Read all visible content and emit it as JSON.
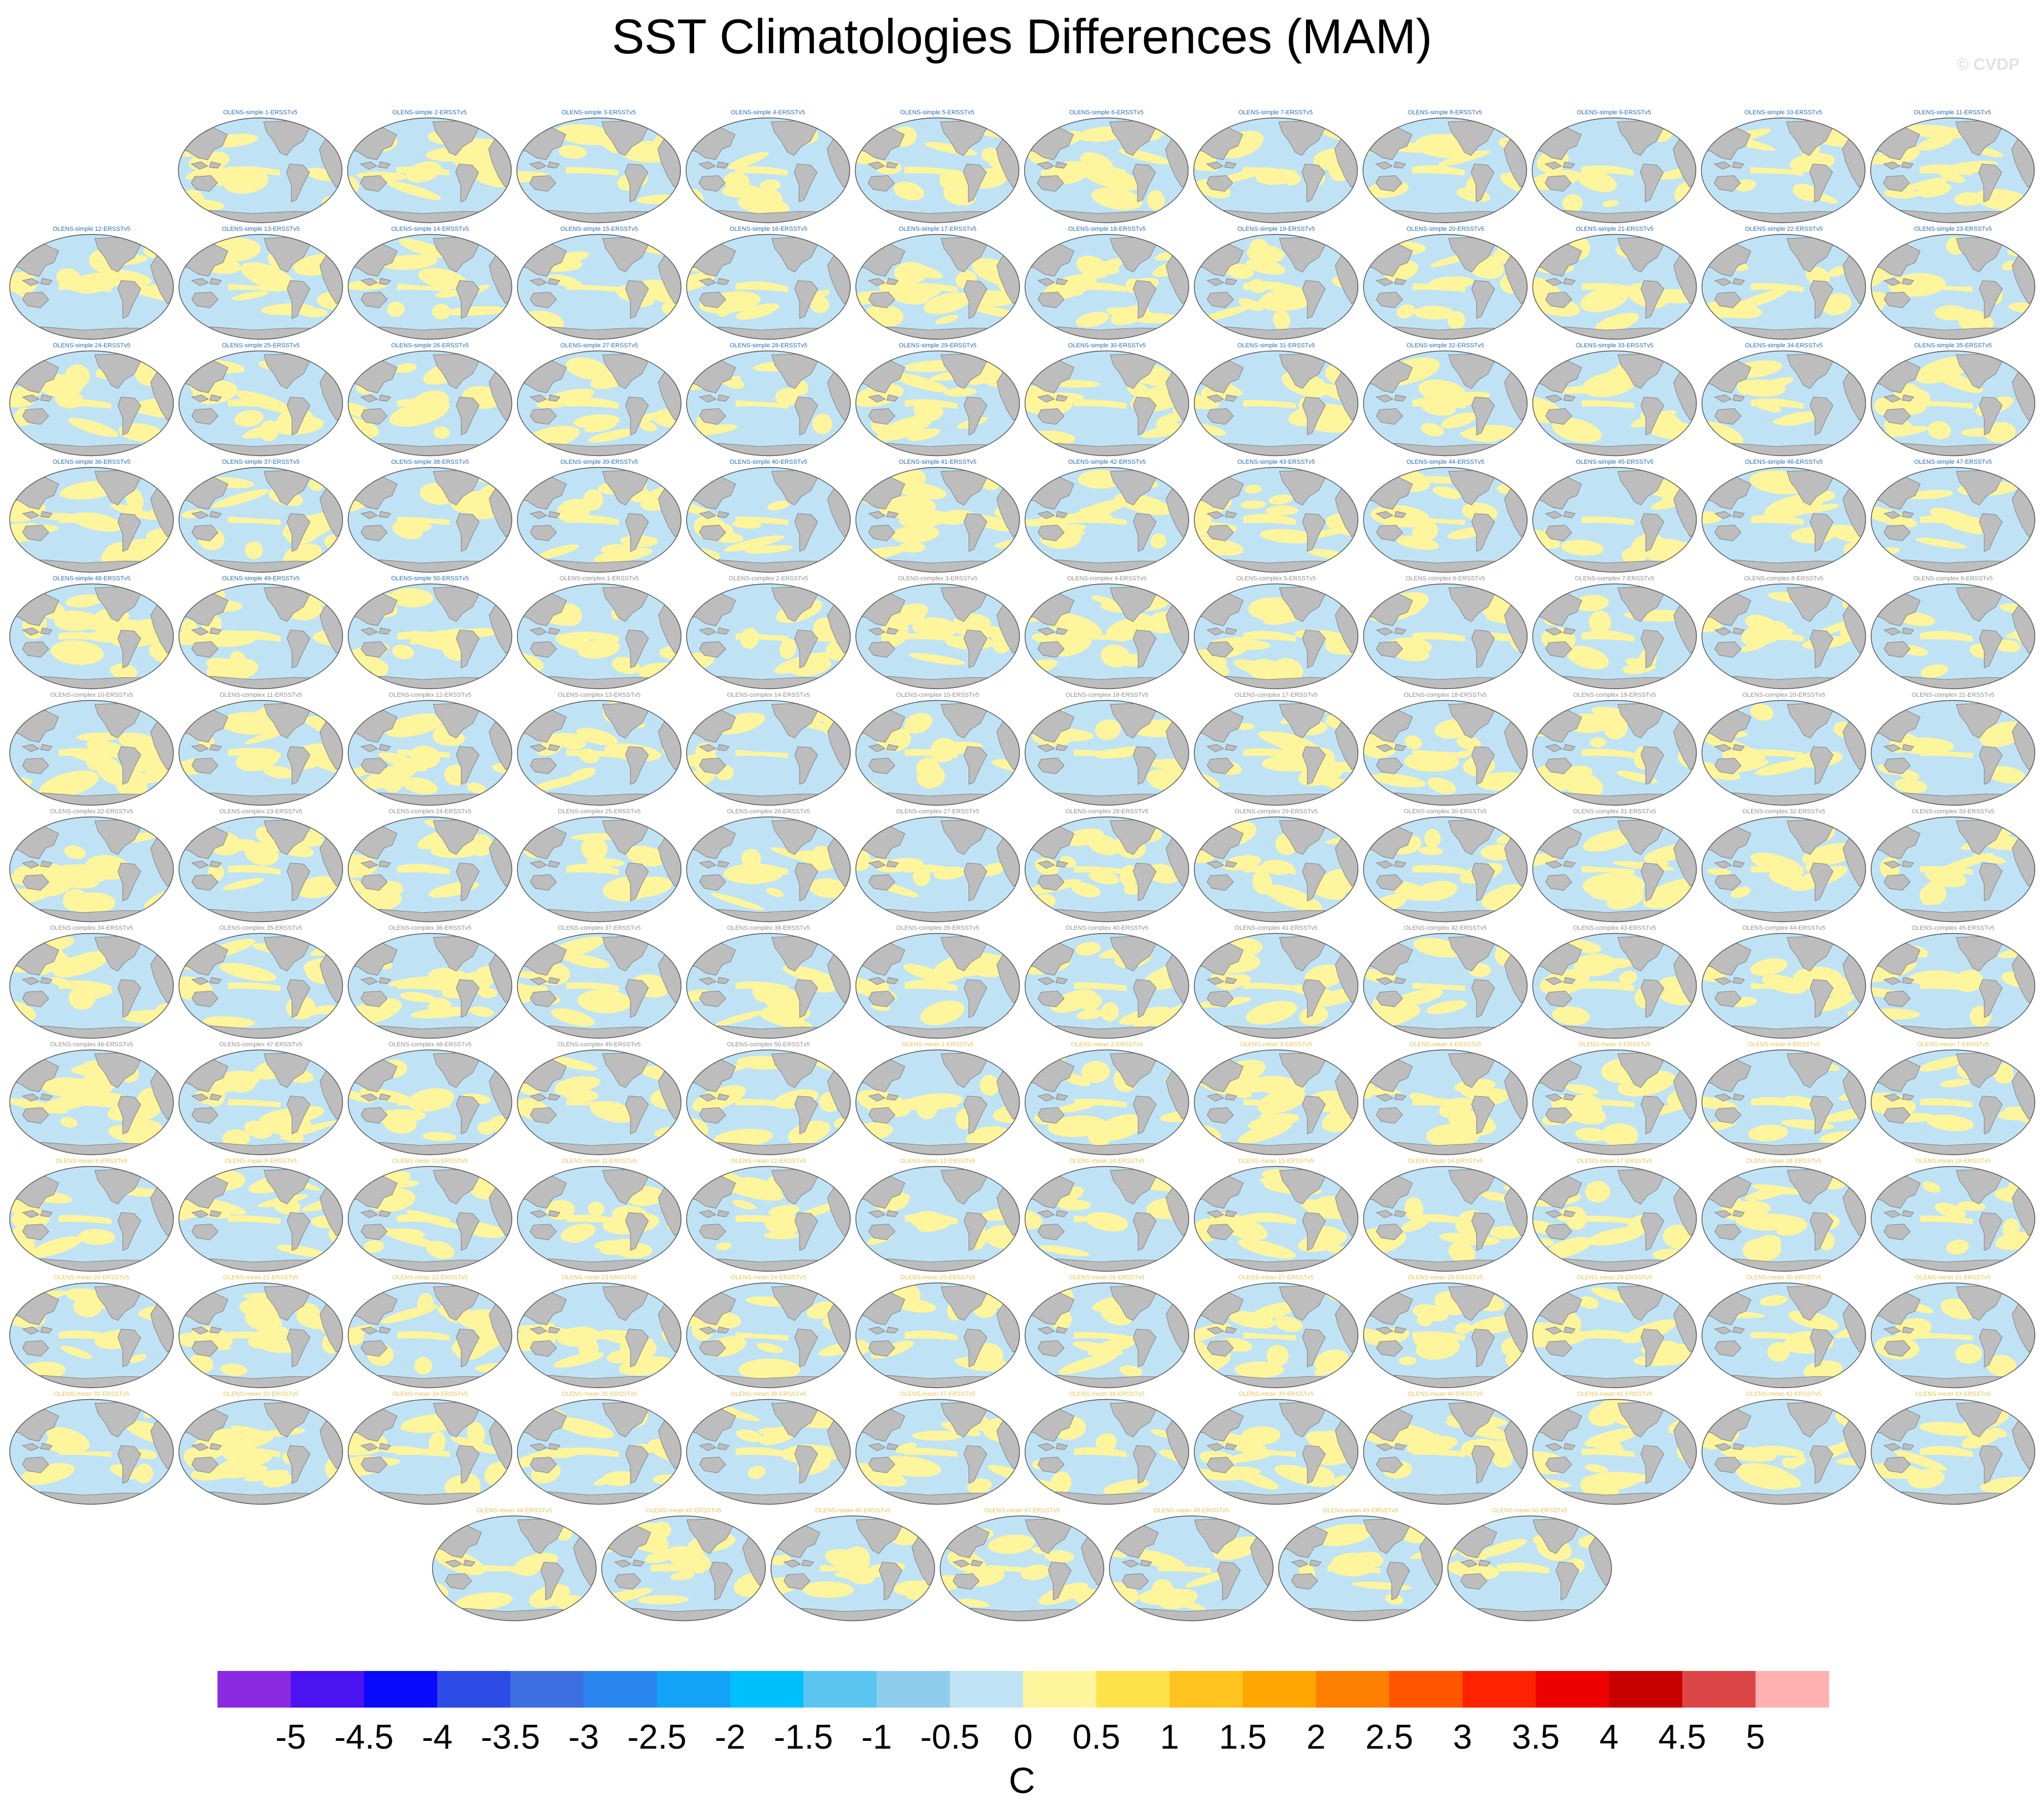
{
  "figure": {
    "title": "SST Climatologies Differences (MAM)",
    "watermark": "© CVDP"
  },
  "colors": {
    "ocean_neutral": "#bfe3f5",
    "positive_patch": "#fff59d",
    "land": "#bdbdbd",
    "title_simple": "#2a6db5",
    "title_complex": "#909090",
    "title_mean": "#e3c45a"
  },
  "chart_data": {
    "type": "heatmap",
    "title": "SST Climatologies Differences (MAM)",
    "colorbar": {
      "label": "C",
      "tick_labels": [
        "-5",
        "-4.5",
        "-4",
        "-3.5",
        "-3",
        "-2.5",
        "-2",
        "-1.5",
        "-1",
        "-0.5",
        "0",
        "0.5",
        "1",
        "1.5",
        "2",
        "2.5",
        "3",
        "3.5",
        "4",
        "4.5",
        "5"
      ],
      "levels": [
        -5,
        -4.5,
        -4,
        -3.5,
        -3,
        -2.5,
        -2,
        -1.5,
        -1,
        -0.5,
        0,
        0.5,
        1,
        1.5,
        2,
        2.5,
        3,
        3.5,
        4,
        4.5,
        5
      ],
      "colors": [
        "#8a2be2",
        "#4b12f2",
        "#0a0aff",
        "#2d4ce6",
        "#3e6fe0",
        "#2a86ef",
        "#12a3f6",
        "#00c0fb",
        "#5ac5f1",
        "#8fcdec",
        "#bfe3f5",
        "#fff59d",
        "#ffe24a",
        "#ffc21f",
        "#ffa500",
        "#ff7f00",
        "#ff5500",
        "#ff2200",
        "#ee0000",
        "#c80000",
        "#dc4545",
        "#ffb0b0"
      ]
    },
    "panels": [
      {
        "title": "OLENS-simple 1-ERSSTv5",
        "group": "simple"
      },
      {
        "title": "OLENS-simple 2-ERSSTv5",
        "group": "simple"
      },
      {
        "title": "OLENS-simple 3-ERSSTv5",
        "group": "simple"
      },
      {
        "title": "OLENS-simple 4-ERSSTv5",
        "group": "simple"
      },
      {
        "title": "OLENS-simple 5-ERSSTv5",
        "group": "simple"
      },
      {
        "title": "OLENS-simple 6-ERSSTv5",
        "group": "simple"
      },
      {
        "title": "OLENS-simple 7-ERSSTv5",
        "group": "simple"
      },
      {
        "title": "OLENS-simple 8-ERSSTv5",
        "group": "simple"
      },
      {
        "title": "OLENS-simple 9-ERSSTv5",
        "group": "simple"
      },
      {
        "title": "OLENS-simple 10-ERSSTv5",
        "group": "simple"
      },
      {
        "title": "OLENS-simple 11-ERSSTv5",
        "group": "simple"
      },
      {
        "title": "OLENS-simple 12-ERSSTv5",
        "group": "simple"
      },
      {
        "title": "OLENS-simple 13-ERSSTv5",
        "group": "simple"
      },
      {
        "title": "OLENS-simple 14-ERSSTv5",
        "group": "simple"
      },
      {
        "title": "OLENS-simple 15-ERSSTv5",
        "group": "simple"
      },
      {
        "title": "OLENS-simple 16-ERSSTv5",
        "group": "simple"
      },
      {
        "title": "OLENS-simple 17-ERSSTv5",
        "group": "simple"
      },
      {
        "title": "OLENS-simple 18-ERSSTv5",
        "group": "simple"
      },
      {
        "title": "OLENS-simple 19-ERSSTv5",
        "group": "simple"
      },
      {
        "title": "OLENS-simple 20-ERSSTv5",
        "group": "simple"
      },
      {
        "title": "OLENS-simple 21-ERSSTv5",
        "group": "simple"
      },
      {
        "title": "OLENS-simple 22-ERSSTv5",
        "group": "simple"
      },
      {
        "title": "OLENS-simple 23-ERSSTv5",
        "group": "simple"
      },
      {
        "title": "OLENS-simple 24-ERSSTv5",
        "group": "simple"
      },
      {
        "title": "OLENS-simple 25-ERSSTv5",
        "group": "simple"
      },
      {
        "title": "OLENS-simple 26-ERSSTv5",
        "group": "simple"
      },
      {
        "title": "OLENS-simple 27-ERSSTv5",
        "group": "simple"
      },
      {
        "title": "OLENS-simple 28-ERSSTv5",
        "group": "simple"
      },
      {
        "title": "OLENS-simple 29-ERSSTv5",
        "group": "simple"
      },
      {
        "title": "OLENS-simple 30-ERSSTv5",
        "group": "simple"
      },
      {
        "title": "OLENS-simple 31-ERSSTv5",
        "group": "simple"
      },
      {
        "title": "OLENS-simple 32-ERSSTv5",
        "group": "simple"
      },
      {
        "title": "OLENS-simple 33-ERSSTv5",
        "group": "simple"
      },
      {
        "title": "OLENS-simple 34-ERSSTv5",
        "group": "simple"
      },
      {
        "title": "OLENS-simple 35-ERSSTv5",
        "group": "simple"
      },
      {
        "title": "OLENS-simple 36-ERSSTv5",
        "group": "simple"
      },
      {
        "title": "OLENS-simple 37-ERSSTv5",
        "group": "simple"
      },
      {
        "title": "OLENS-simple 38-ERSSTv5",
        "group": "simple"
      },
      {
        "title": "OLENS-simple 39-ERSSTv5",
        "group": "simple"
      },
      {
        "title": "OLENS-simple 40-ERSSTv5",
        "group": "simple"
      },
      {
        "title": "OLENS-simple 41-ERSSTv5",
        "group": "simple"
      },
      {
        "title": "OLENS-simple 42-ERSSTv5",
        "group": "simple"
      },
      {
        "title": "OLENS-simple 43-ERSSTv5",
        "group": "simple"
      },
      {
        "title": "OLENS-simple 44-ERSSTv5",
        "group": "simple"
      },
      {
        "title": "OLENS-simple 45-ERSSTv5",
        "group": "simple"
      },
      {
        "title": "OLENS-simple 46-ERSSTv5",
        "group": "simple"
      },
      {
        "title": "OLENS-simple 47-ERSSTv5",
        "group": "simple"
      },
      {
        "title": "OLENS-simple 48-ERSSTv5",
        "group": "simple"
      },
      {
        "title": "OLENS-simple 49-ERSSTv5",
        "group": "simple"
      },
      {
        "title": "OLENS-simple 50-ERSSTv5",
        "group": "simple"
      },
      {
        "title": "OLENS-complex 1-ERSSTv5",
        "group": "complex"
      },
      {
        "title": "OLENS-complex 2-ERSSTv5",
        "group": "complex"
      },
      {
        "title": "OLENS-complex 3-ERSSTv5",
        "group": "complex"
      },
      {
        "title": "OLENS-complex 4-ERSSTv5",
        "group": "complex"
      },
      {
        "title": "OLENS-complex 5-ERSSTv5",
        "group": "complex"
      },
      {
        "title": "OLENS-complex 6-ERSSTv5",
        "group": "complex"
      },
      {
        "title": "OLENS-complex 7-ERSSTv5",
        "group": "complex"
      },
      {
        "title": "OLENS-complex 8-ERSSTv5",
        "group": "complex"
      },
      {
        "title": "OLENS-complex 9-ERSSTv5",
        "group": "complex"
      },
      {
        "title": "OLENS-complex 10-ERSSTv5",
        "group": "complex"
      },
      {
        "title": "OLENS-complex 11-ERSSTv5",
        "group": "complex"
      },
      {
        "title": "OLENS-complex 12-ERSSTv5",
        "group": "complex"
      },
      {
        "title": "OLENS-complex 13-ERSSTv5",
        "group": "complex"
      },
      {
        "title": "OLENS-complex 14-ERSSTv5",
        "group": "complex"
      },
      {
        "title": "OLENS-complex 15-ERSSTv5",
        "group": "complex"
      },
      {
        "title": "OLENS-complex 16-ERSSTv5",
        "group": "complex"
      },
      {
        "title": "OLENS-complex 17-ERSSTv5",
        "group": "complex"
      },
      {
        "title": "OLENS-complex 18-ERSSTv5",
        "group": "complex"
      },
      {
        "title": "OLENS-complex 19-ERSSTv5",
        "group": "complex"
      },
      {
        "title": "OLENS-complex 20-ERSSTv5",
        "group": "complex"
      },
      {
        "title": "OLENS-complex 21-ERSSTv5",
        "group": "complex"
      },
      {
        "title": "OLENS-complex 22-ERSSTv5",
        "group": "complex"
      },
      {
        "title": "OLENS-complex 23-ERSSTv5",
        "group": "complex"
      },
      {
        "title": "OLENS-complex 24-ERSSTv5",
        "group": "complex"
      },
      {
        "title": "OLENS-complex 25-ERSSTv5",
        "group": "complex"
      },
      {
        "title": "OLENS-complex 26-ERSSTv5",
        "group": "complex"
      },
      {
        "title": "OLENS-complex 27-ERSSTv5",
        "group": "complex"
      },
      {
        "title": "OLENS-complex 28-ERSSTv5",
        "group": "complex"
      },
      {
        "title": "OLENS-complex 29-ERSSTv5",
        "group": "complex"
      },
      {
        "title": "OLENS-complex 30-ERSSTv5",
        "group": "complex"
      },
      {
        "title": "OLENS-complex 31-ERSSTv5",
        "group": "complex"
      },
      {
        "title": "OLENS-complex 32-ERSSTv5",
        "group": "complex"
      },
      {
        "title": "OLENS-complex 33-ERSSTv5",
        "group": "complex"
      },
      {
        "title": "OLENS-complex 34-ERSSTv5",
        "group": "complex"
      },
      {
        "title": "OLENS-complex 35-ERSSTv5",
        "group": "complex"
      },
      {
        "title": "OLENS-complex 36-ERSSTv5",
        "group": "complex"
      },
      {
        "title": "OLENS-complex 37-ERSSTv5",
        "group": "complex"
      },
      {
        "title": "OLENS-complex 38-ERSSTv5",
        "group": "complex"
      },
      {
        "title": "OLENS-complex 39-ERSSTv5",
        "group": "complex"
      },
      {
        "title": "OLENS-complex 40-ERSSTv5",
        "group": "complex"
      },
      {
        "title": "OLENS-complex 41-ERSSTv5",
        "group": "complex"
      },
      {
        "title": "OLENS-complex 42-ERSSTv5",
        "group": "complex"
      },
      {
        "title": "OLENS-complex 43-ERSSTv5",
        "group": "complex"
      },
      {
        "title": "OLENS-complex 44-ERSSTv5",
        "group": "complex"
      },
      {
        "title": "OLENS-complex 45-ERSSTv5",
        "group": "complex"
      },
      {
        "title": "OLENS-complex 46-ERSSTv5",
        "group": "complex"
      },
      {
        "title": "OLENS-complex 47-ERSSTv5",
        "group": "complex"
      },
      {
        "title": "OLENS-complex 48-ERSSTv5",
        "group": "complex"
      },
      {
        "title": "OLENS-complex 49-ERSSTv5",
        "group": "complex"
      },
      {
        "title": "OLENS-complex 50-ERSSTv5",
        "group": "complex"
      },
      {
        "title": "OLENS-mean 1-ERSSTv5",
        "group": "mean"
      },
      {
        "title": "OLENS-mean 2-ERSSTv5",
        "group": "mean"
      },
      {
        "title": "OLENS-mean 3-ERSSTv5",
        "group": "mean"
      },
      {
        "title": "OLENS-mean 4-ERSSTv5",
        "group": "mean"
      },
      {
        "title": "OLENS-mean 5-ERSSTv5",
        "group": "mean"
      },
      {
        "title": "OLENS-mean 6-ERSSTv5",
        "group": "mean"
      },
      {
        "title": "OLENS-mean 7-ERSSTv5",
        "group": "mean"
      },
      {
        "title": "OLENS-mean 8-ERSSTv5",
        "group": "mean"
      },
      {
        "title": "OLENS-mean 9-ERSSTv5",
        "group": "mean"
      },
      {
        "title": "OLENS-mean 10-ERSSTv5",
        "group": "mean"
      },
      {
        "title": "OLENS-mean 11-ERSSTv5",
        "group": "mean"
      },
      {
        "title": "OLENS-mean 12-ERSSTv5",
        "group": "mean"
      },
      {
        "title": "OLENS-mean 13-ERSSTv5",
        "group": "mean"
      },
      {
        "title": "OLENS-mean 14-ERSSTv5",
        "group": "mean"
      },
      {
        "title": "OLENS-mean 15-ERSSTv5",
        "group": "mean"
      },
      {
        "title": "OLENS-mean 16-ERSSTv5",
        "group": "mean"
      },
      {
        "title": "OLENS-mean 17-ERSSTv5",
        "group": "mean"
      },
      {
        "title": "OLENS-mean 18-ERSSTv5",
        "group": "mean"
      },
      {
        "title": "OLENS-mean 19-ERSSTv5",
        "group": "mean"
      },
      {
        "title": "OLENS-mean 20-ERSSTv5",
        "group": "mean"
      },
      {
        "title": "OLENS-mean 21-ERSSTv5",
        "group": "mean"
      },
      {
        "title": "OLENS-mean 22-ERSSTv5",
        "group": "mean"
      },
      {
        "title": "OLENS-mean 23-ERSSTv5",
        "group": "mean"
      },
      {
        "title": "OLENS-mean 24-ERSSTv5",
        "group": "mean"
      },
      {
        "title": "OLENS-mean 25-ERSSTv5",
        "group": "mean"
      },
      {
        "title": "OLENS-mean 26-ERSSTv5",
        "group": "mean"
      },
      {
        "title": "OLENS-mean 27-ERSSTv5",
        "group": "mean"
      },
      {
        "title": "OLENS-mean 28-ERSSTv5",
        "group": "mean"
      },
      {
        "title": "OLENS-mean 29-ERSSTv5",
        "group": "mean"
      },
      {
        "title": "OLENS-mean 30-ERSSTv5",
        "group": "mean"
      },
      {
        "title": "OLENS-mean 31-ERSSTv5",
        "group": "mean"
      },
      {
        "title": "OLENS-mean 32-ERSSTv5",
        "group": "mean"
      },
      {
        "title": "OLENS-mean 33-ERSSTv5",
        "group": "mean"
      },
      {
        "title": "OLENS-mean 34-ERSSTv5",
        "group": "mean"
      },
      {
        "title": "OLENS-mean 35-ERSSTv5",
        "group": "mean"
      },
      {
        "title": "OLENS-mean 36-ERSSTv5",
        "group": "mean"
      },
      {
        "title": "OLENS-mean 37-ERSSTv5",
        "group": "mean"
      },
      {
        "title": "OLENS-mean 38-ERSSTv5",
        "group": "mean"
      },
      {
        "title": "OLENS-mean 39-ERSSTv5",
        "group": "mean"
      },
      {
        "title": "OLENS-mean 40-ERSSTv5",
        "group": "mean"
      },
      {
        "title": "OLENS-mean 41-ERSSTv5",
        "group": "mean"
      },
      {
        "title": "OLENS-mean 42-ERSSTv5",
        "group": "mean"
      },
      {
        "title": "OLENS-mean 43-ERSSTv5",
        "group": "mean"
      },
      {
        "title": "OLENS-mean 44-ERSSTv5",
        "group": "mean"
      },
      {
        "title": "OLENS-mean 45-ERSSTv5",
        "group": "mean"
      },
      {
        "title": "OLENS-mean 46-ERSSTv5",
        "group": "mean"
      },
      {
        "title": "OLENS-mean 47-ERSSTv5",
        "group": "mean"
      },
      {
        "title": "OLENS-mean 48-ERSSTv5",
        "group": "mean"
      },
      {
        "title": "OLENS-mean 49-ERSSTv5",
        "group": "mean"
      },
      {
        "title": "OLENS-mean 50-ERSSTv5",
        "group": "mean"
      }
    ]
  }
}
